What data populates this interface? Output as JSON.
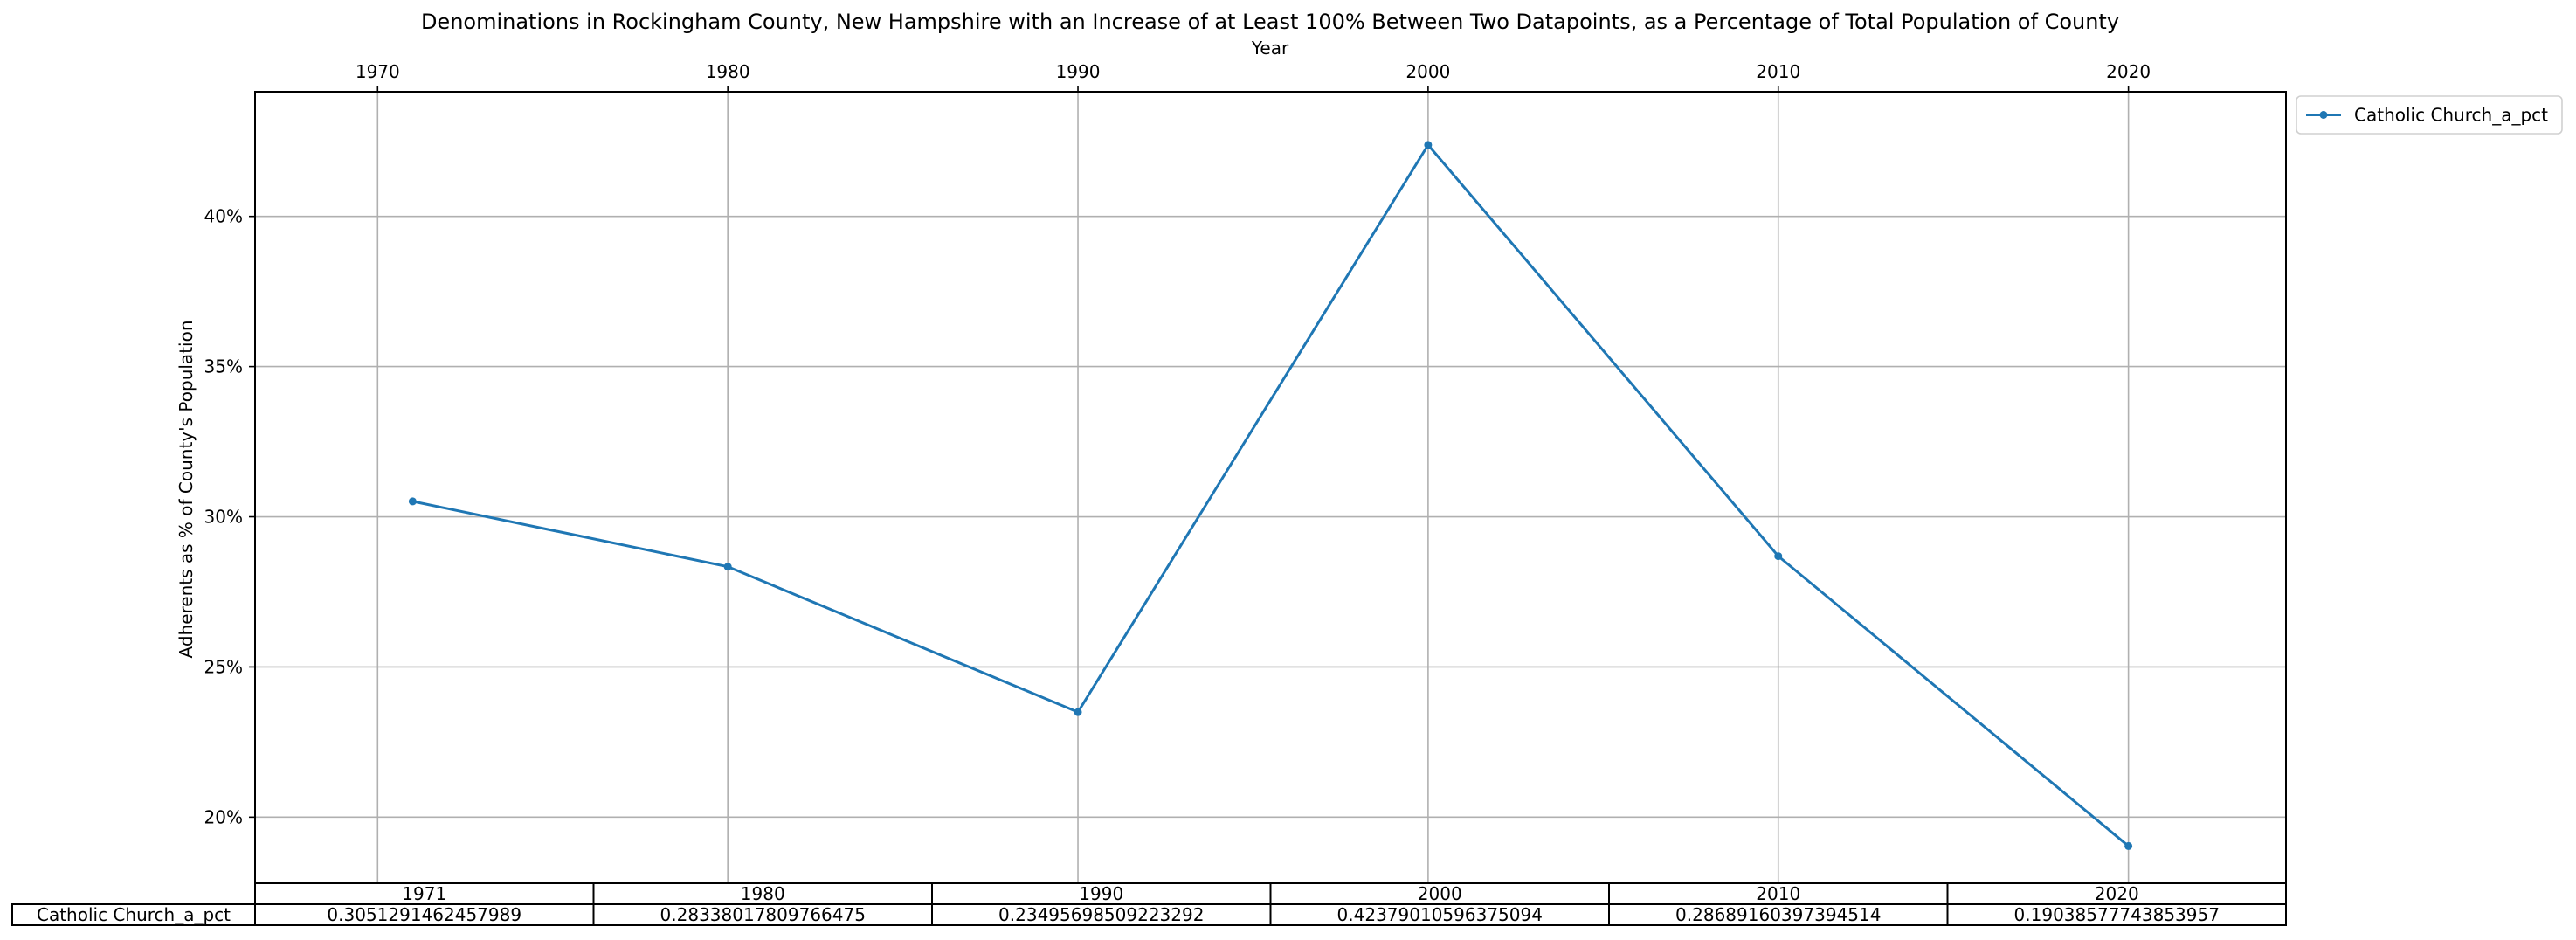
{
  "chart_data": {
    "type": "line",
    "title": "Denominations in Rockingham County, New Hampshire with an Increase of at Least 100% Between Two Datapoints, as a Percentage of Total Population of County",
    "xlabel": "Year",
    "ylabel": "Adherents as % of County's Population",
    "x_ticks": [
      1970,
      1980,
      1990,
      2000,
      2010,
      2020
    ],
    "x_tick_labels": [
      "1970",
      "1980",
      "1990",
      "2000",
      "2010",
      "2020"
    ],
    "xlim": [
      1966.5,
      2024.5
    ],
    "y_ticks": [
      0.2,
      0.25,
      0.3,
      0.35,
      0.4
    ],
    "y_tick_labels": [
      "20%",
      "25%",
      "30%",
      "35%",
      "40%"
    ],
    "ylim": [
      0.178,
      0.4415
    ],
    "x_axis_position": "top",
    "grid": true,
    "legend_position": "outside-top-right",
    "x": [
      1971,
      1980,
      1990,
      2000,
      2010,
      2020
    ],
    "series": [
      {
        "name": "Catholic Church_a_pct",
        "color": "#1f77b4",
        "values": [
          0.3051291462457989,
          0.28338017809766475,
          0.23495698509223292,
          0.42379010596375094,
          0.28689160397394514,
          0.19038577743853957
        ]
      }
    ],
    "table": {
      "columns": [
        "1971",
        "1980",
        "1990",
        "2000",
        "2010",
        "2020"
      ],
      "rows": [
        {
          "label": "Catholic Church_a_pct",
          "cells": [
            "0.3051291462457989",
            "0.28338017809766475",
            "0.23495698509223292",
            "0.42379010596375094",
            "0.28689160397394514",
            "0.19038577743853957"
          ]
        }
      ]
    }
  }
}
